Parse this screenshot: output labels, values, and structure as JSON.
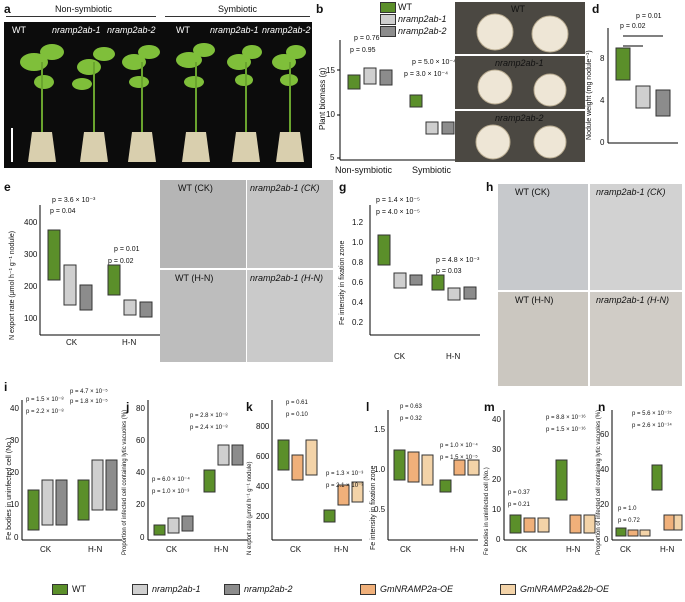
{
  "legend_top": [
    {
      "label": "WT",
      "color": "#5b8f2a"
    },
    {
      "label": "nramp2ab-1",
      "color": "#cfcfcf"
    },
    {
      "label": "nramp2ab-2",
      "color": "#8c8c8c"
    }
  ],
  "legend_bottom": [
    {
      "label": "WT",
      "color": "#5b8f2a"
    },
    {
      "label": "nramp2ab-1",
      "color": "#cfcfcf"
    },
    {
      "label": "nramp2ab-2",
      "color": "#8c8c8c"
    },
    {
      "label": "GmNRAMP2a-OE",
      "color": "#f0b07a"
    },
    {
      "label": "GmNRAMP2a&2b-OE",
      "color": "#f3d3a8"
    }
  ],
  "panel_a": {
    "letter": "a",
    "group1": "Non-symbiotic",
    "group2": "Symbiotic",
    "labels": [
      "WT",
      "nramp2ab-1",
      "nramp2ab-2",
      "WT",
      "nramp2ab-1",
      "nramp2ab-2"
    ]
  },
  "panel_b": {
    "letter": "b",
    "ylabel": "Plant biomass (g)",
    "yticks": [
      "5",
      "10",
      "15"
    ],
    "xticks": [
      "Non-symbiotic",
      "Symbiotic"
    ],
    "pvals": [
      "p = 0.76",
      "p = 0.95",
      "p = 5.0 × 10⁻⁴",
      "p = 3.0 × 10⁻⁴"
    ]
  },
  "panel_c": {
    "letter": "c",
    "labels": [
      "WT",
      "nramp2ab-1",
      "nramp2ab-2"
    ]
  },
  "panel_d": {
    "letter": "d",
    "ylabel": "Nodule weight (mg nodule⁻¹)",
    "yticks": [
      "0",
      "4",
      "8"
    ],
    "pvals": [
      "p = 0.01",
      "p = 0.02"
    ]
  },
  "panel_e": {
    "letter": "e",
    "ylabel": "N export rate (μmol h⁻¹ g⁻¹ nodule)",
    "yticks": [
      "100",
      "200",
      "300",
      "400"
    ],
    "xticks": [
      "CK",
      "H-N"
    ],
    "pvals": [
      "p = 3.6 × 10⁻³",
      "p = 0.04",
      "p = 0.01",
      "p = 0.02"
    ]
  },
  "panel_f": {
    "letter": "f",
    "labels": [
      "WT (CK)",
      "nramp2ab-1 (CK)",
      "WT (H-N)",
      "nramp2ab-1 (H-N)"
    ]
  },
  "panel_g": {
    "letter": "g",
    "ylabel": "Fe intensity in fixation zone",
    "yticks": [
      "0.2",
      "0.4",
      "0.6",
      "0.8",
      "1.0",
      "1.2"
    ],
    "xticks": [
      "CK",
      "H-N"
    ],
    "pvals": [
      "p = 1.4 × 10⁻⁵",
      "p = 4.0 × 10⁻⁵",
      "p = 4.8 × 10⁻³",
      "p = 0.03"
    ]
  },
  "panel_h": {
    "letter": "h",
    "labels": [
      "WT (CK)",
      "nramp2ab-1 (CK)",
      "WT (H-N)",
      "nramp2ab-1 (H-N)"
    ]
  },
  "panel_i": {
    "letter": "i",
    "ylabel": "Fe bodies in uninfected cell (No.)",
    "yticks": [
      "0",
      "10",
      "20",
      "30",
      "40"
    ],
    "xticks": [
      "CK",
      "H-N"
    ],
    "pvals": [
      "p = 1.5 × 10⁻⁸",
      "p = 2.2 × 10⁻⁸",
      "p = 4.7 × 10⁻⁵",
      "p = 1.8 × 10⁻⁵"
    ]
  },
  "panel_j": {
    "letter": "j",
    "ylabel": "Proportion of infected cell containing lytic vacuoles (%)",
    "yticks": [
      "0",
      "20",
      "40",
      "60",
      "80"
    ],
    "xticks": [
      "CK",
      "H-N"
    ],
    "pvals": [
      "p = 2.8 × 10⁻⁸",
      "p = 2.4 × 10⁻⁸",
      "p = 6.0 × 10⁻⁴",
      "p = 1.0 × 10⁻³"
    ]
  },
  "panel_k": {
    "letter": "k",
    "ylabel": "N export rate (μmol h⁻¹ g⁻¹ nodule)",
    "yticks": [
      "200",
      "400",
      "600",
      "800"
    ],
    "xticks": [
      "CK",
      "H-N"
    ],
    "pvals": [
      "p = 0.61",
      "p = 0.10",
      "p = 1.3 × 10⁻³",
      "p = 2.1 × 10⁻³"
    ]
  },
  "panel_l": {
    "letter": "l",
    "ylabel": "Fe intensity in fixation zone",
    "yticks": [
      "0.5",
      "1.0",
      "1.5"
    ],
    "xticks": [
      "CK",
      "H-N"
    ],
    "pvals": [
      "p = 0.63",
      "p = 0.32",
      "p = 1.0 × 10⁻⁴",
      "p = 1.5 × 10⁻⁵"
    ]
  },
  "panel_m": {
    "letter": "m",
    "ylabel": "Fe bodies in uninfected cell (No.)",
    "yticks": [
      "0",
      "10",
      "20",
      "30",
      "40"
    ],
    "xticks": [
      "CK",
      "H-N"
    ],
    "pvals": [
      "p = 0.37",
      "p = 0.21",
      "p = 8.8 × 10⁻¹⁶",
      "p = 1.5 × 10⁻¹⁶"
    ]
  },
  "panel_n": {
    "letter": "n",
    "ylabel": "Proportion of infected cell containing lytic vacuoles (%)",
    "yticks": [
      "0",
      "20",
      "40",
      "60"
    ],
    "xticks": [
      "CK",
      "H-N"
    ],
    "pvals": [
      "p = 1.0",
      "p = 0.72",
      "p = 5.6 × 10⁻¹⁵",
      "p = 2.6 × 10⁻¹⁴"
    ]
  }
}
